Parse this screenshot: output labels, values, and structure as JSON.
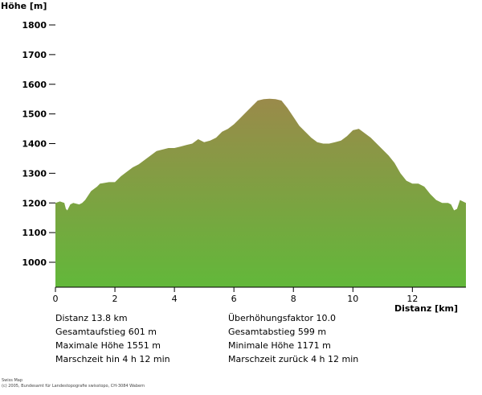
{
  "chart_data": {
    "type": "area",
    "xlabel": "Distanz [km]",
    "ylabel": "Höhe [m]",
    "xlim": [
      0,
      13.8
    ],
    "ylim": [
      915,
      1800
    ],
    "x_ticks": [
      0,
      2,
      4,
      6,
      8,
      10,
      12
    ],
    "y_ticks": [
      1000,
      1100,
      1200,
      1300,
      1400,
      1500,
      1600,
      1700,
      1800
    ],
    "fill_top_color": "#9a8a4a",
    "fill_bottom_color": "#62b83a",
    "x": [
      0,
      0.15,
      0.3,
      0.35,
      0.4,
      0.5,
      0.6,
      0.8,
      0.9,
      1.0,
      1.2,
      1.4,
      1.5,
      1.8,
      2.0,
      2.2,
      2.4,
      2.6,
      2.8,
      3.0,
      3.2,
      3.4,
      3.6,
      3.8,
      4.0,
      4.2,
      4.4,
      4.6,
      4.8,
      5.0,
      5.2,
      5.4,
      5.6,
      5.8,
      6.0,
      6.2,
      6.4,
      6.6,
      6.8,
      7.0,
      7.2,
      7.4,
      7.6,
      7.8,
      8.0,
      8.2,
      8.4,
      8.6,
      8.8,
      9.0,
      9.2,
      9.4,
      9.6,
      9.8,
      10.0,
      10.2,
      10.4,
      10.6,
      10.8,
      11.0,
      11.2,
      11.4,
      11.6,
      11.8,
      12.0,
      12.2,
      12.4,
      12.6,
      12.8,
      13.0,
      13.2,
      13.3,
      13.4,
      13.5,
      13.6,
      13.8
    ],
    "y": [
      1200,
      1205,
      1200,
      1180,
      1175,
      1195,
      1200,
      1195,
      1200,
      1210,
      1240,
      1255,
      1265,
      1270,
      1270,
      1290,
      1305,
      1320,
      1330,
      1345,
      1360,
      1375,
      1380,
      1385,
      1385,
      1390,
      1395,
      1400,
      1415,
      1405,
      1410,
      1420,
      1440,
      1450,
      1465,
      1485,
      1505,
      1525,
      1545,
      1550,
      1551,
      1550,
      1545,
      1520,
      1490,
      1460,
      1440,
      1420,
      1405,
      1400,
      1400,
      1405,
      1410,
      1425,
      1445,
      1450,
      1435,
      1420,
      1400,
      1380,
      1360,
      1335,
      1300,
      1275,
      1265,
      1265,
      1255,
      1230,
      1210,
      1200,
      1200,
      1195,
      1175,
      1180,
      1210,
      1200
    ]
  },
  "stats": {
    "distance": "Distanz 13.8 km",
    "ascent": "Gesamtaufstieg  601 m",
    "max_height": "Maximale Höhe  1551 m",
    "time_out": "Marschzeit hin  4 h 12 min",
    "exaggeration": "Überhöhungsfaktor 10.0",
    "descent": "Gesamtabstieg  599 m",
    "min_height": "Minimale Höhe  1171 m",
    "time_back": "Marschzeit zurück  4 h 12 min"
  },
  "credit": {
    "line1": "Swiss Map",
    "line2": "(c) 2005, Bundesamt für Landestopografie swisstopo, CH-3084 Wabern"
  }
}
